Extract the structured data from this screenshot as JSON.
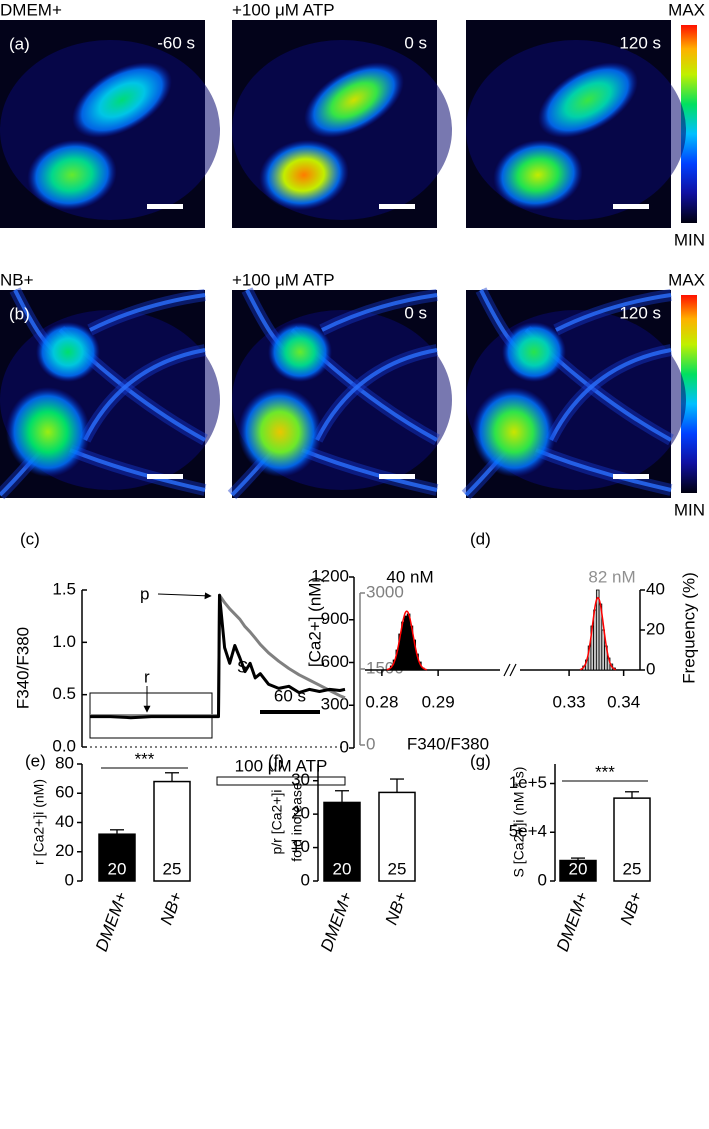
{
  "image_panels": {
    "row_a": {
      "label": "(a)",
      "condition": "DMEM+",
      "treatment": "+100 μM ATP",
      "times": [
        "-60 s",
        "0 s",
        "120 s"
      ]
    },
    "row_b": {
      "label": "(b)",
      "condition": "NB+",
      "treatment": "+100 μM ATP",
      "times": [
        "0 s",
        "120 s"
      ]
    },
    "colorbar": {
      "max": "MAX",
      "min": "MIN"
    }
  },
  "chart_data": [
    {
      "type": "line",
      "panel": "(c)",
      "y_label": "F340/F380",
      "y2_label": "[Ca2+] (nM)",
      "x": [
        0,
        20,
        40,
        60,
        80,
        100,
        120,
        126,
        127,
        132,
        137,
        142,
        147,
        152,
        157,
        162,
        167,
        175,
        185,
        195,
        205,
        215,
        225,
        235,
        245,
        250
      ],
      "xlim": [
        0,
        250
      ],
      "ylim": [
        0,
        1.5
      ],
      "yticks": [
        {
          "value": 0,
          "label": "0.0"
        },
        {
          "value": 0.5,
          "label": "0.5"
        },
        {
          "value": 1,
          "label": "1.0"
        },
        {
          "value": 1.5,
          "label": "1.5"
        }
      ],
      "y2lim": [
        0,
        1200
      ],
      "y2ticks": [
        0,
        300,
        600,
        900,
        1200
      ],
      "y3lim": [
        0,
        3000
      ],
      "y3ticks": [
        0,
        1500,
        3000
      ],
      "y3color": "#808080",
      "series": [
        {
          "color": "#808080",
          "values": [
            0.3,
            0.3,
            0.3,
            0.3,
            0.3,
            0.3,
            0.3,
            0.3,
            1.45,
            1.38,
            1.32,
            1.27,
            1.22,
            1.15,
            1.1,
            1.04,
            0.98,
            0.9,
            0.82,
            0.75,
            0.69,
            0.64,
            0.59,
            0.54,
            0.49,
            0.47
          ]
        },
        {
          "color": "#000000",
          "values": [
            0.29,
            0.29,
            0.28,
            0.29,
            0.29,
            0.29,
            0.29,
            0.29,
            1.45,
            0.95,
            0.8,
            0.97,
            0.85,
            0.72,
            0.8,
            0.66,
            0.7,
            0.6,
            0.56,
            0.58,
            0.52,
            0.55,
            0.53,
            0.55,
            0.54,
            0.55
          ]
        }
      ],
      "annotations": {
        "peak": "p",
        "rest": "r",
        "area": "S",
        "scale_bar": "60 s",
        "stimulus": "100 μM ATP"
      }
    },
    {
      "type": "histogram",
      "panel": "(d)",
      "x_label": "F340/F380",
      "y_label": "Frequency (%)",
      "ylim": [
        0,
        40
      ],
      "yticks": [
        0,
        20,
        40
      ],
      "fit_color": "#ff0000",
      "series": [
        {
          "name": "40 nM",
          "color": "#000000",
          "text_color": "#000000",
          "xlim": [
            0.277,
            0.301
          ],
          "xticks": [
            0.28,
            0.29
          ],
          "bins": [
            0.2815,
            0.282,
            0.2825,
            0.283,
            0.2835,
            0.284,
            0.2845,
            0.285,
            0.2855,
            0.286,
            0.2865,
            0.287,
            0.2875
          ],
          "values": [
            2,
            5,
            10,
            18,
            24,
            27,
            28,
            22,
            15,
            8,
            4,
            1
          ]
        },
        {
          "name": "82 nM",
          "color": "#c8c8c8",
          "text_color": "#909090",
          "xlim": [
            0.321,
            0.343
          ],
          "xticks": [
            0.33,
            0.34
          ],
          "bins": [
            0.3325,
            0.333,
            0.3335,
            0.334,
            0.3345,
            0.335,
            0.3355,
            0.336,
            0.3365,
            0.337,
            0.3375,
            0.338,
            0.3385
          ],
          "values": [
            2,
            5,
            12,
            22,
            30,
            40,
            33,
            20,
            12,
            6,
            3,
            1
          ]
        }
      ]
    },
    {
      "type": "bar",
      "panel": "(e)",
      "y_label": "r [Ca2+]i (nM)",
      "categories": [
        "DMEM+",
        "NB+"
      ],
      "values": [
        32,
        68
      ],
      "errors": [
        3,
        6
      ],
      "n": [
        20,
        25
      ],
      "colors": [
        "#000000",
        "#ffffff"
      ],
      "ylim": [
        0,
        80
      ],
      "yticks": [
        0,
        20,
        40,
        60,
        80
      ],
      "significance": "***"
    },
    {
      "type": "bar",
      "panel": "(f)",
      "y_label": [
        "p/r [Ca2+]i",
        "fold increase"
      ],
      "categories": [
        "DMEM+",
        "NB+"
      ],
      "values": [
        23.5,
        26.5
      ],
      "errors": [
        3.5,
        4
      ],
      "n": [
        20,
        25
      ],
      "colors": [
        "#000000",
        "#ffffff"
      ],
      "ylim": [
        0,
        35
      ],
      "yticks": [
        0,
        10,
        20,
        30
      ]
    },
    {
      "type": "bar",
      "panel": "(g)",
      "y_label": "S [Ca2+]i (nM * s)",
      "categories": [
        "DMEM+",
        "NB+"
      ],
      "values": [
        21000,
        85000
      ],
      "errors": [
        2500,
        6500
      ],
      "n": [
        20,
        25
      ],
      "colors": [
        "#000000",
        "#ffffff"
      ],
      "ylim": [
        0,
        120000
      ],
      "yticks": [
        0,
        {
          "value": 50000,
          "label": "5e+4"
        },
        {
          "value": 100000,
          "label": "1e+5"
        }
      ],
      "significance": "***"
    }
  ]
}
